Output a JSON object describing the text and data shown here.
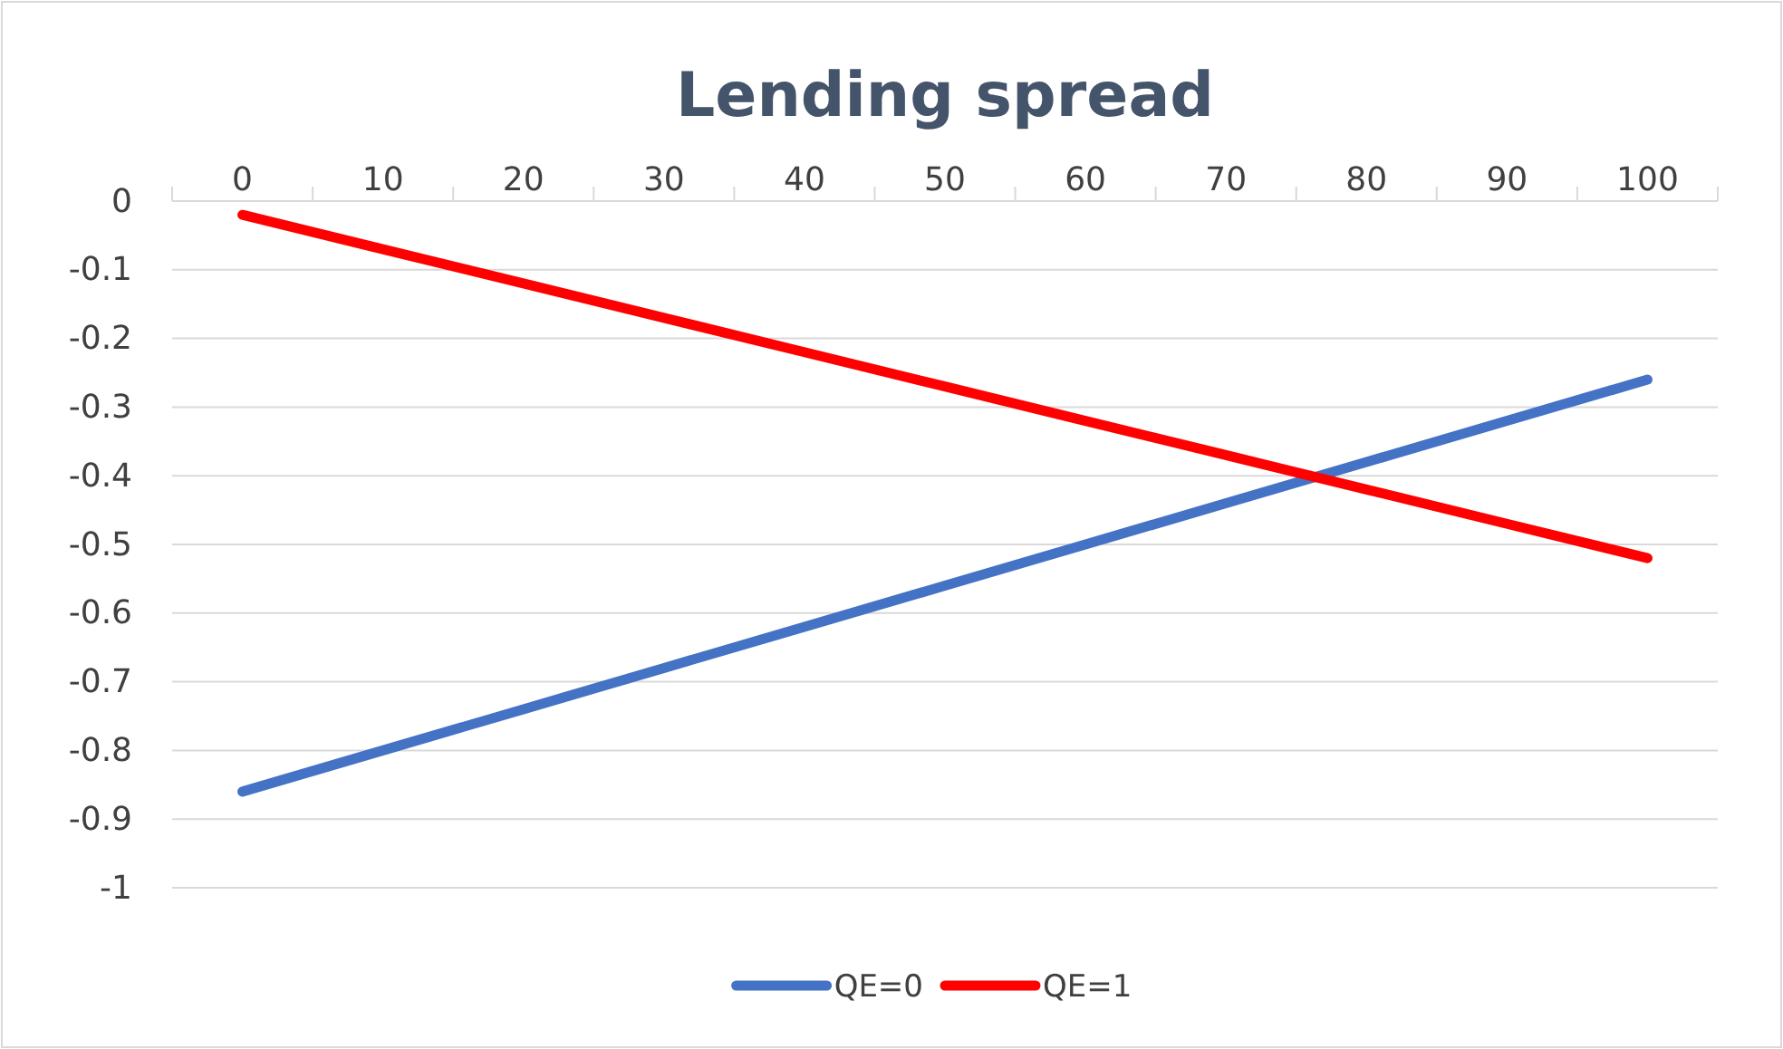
{
  "chart_data": {
    "type": "line",
    "title": "Lending spread",
    "categories": [
      "0",
      "10",
      "20",
      "30",
      "40",
      "50",
      "60",
      "70",
      "80",
      "90",
      "100"
    ],
    "series": [
      {
        "name": "QE=0",
        "color": "#4472c4",
        "values": [
          -0.86,
          -0.8,
          -0.74,
          -0.68,
          -0.62,
          -0.56,
          -0.5,
          -0.44,
          -0.38,
          -0.32,
          -0.26
        ]
      },
      {
        "name": "QE=1",
        "color": "#ff0000",
        "values": [
          -0.02,
          -0.07,
          -0.12,
          -0.17,
          -0.22,
          -0.27,
          -0.32,
          -0.37,
          -0.42,
          -0.47,
          -0.52
        ]
      }
    ],
    "ylim": [
      -1,
      0
    ],
    "yticks": [
      0,
      -0.1,
      -0.2,
      -0.3,
      -0.4,
      -0.5,
      -0.6,
      -0.7,
      -0.8,
      -0.9,
      -1
    ],
    "grid": "y",
    "legend": "bottom",
    "marker": "none",
    "line_style": "solid"
  }
}
